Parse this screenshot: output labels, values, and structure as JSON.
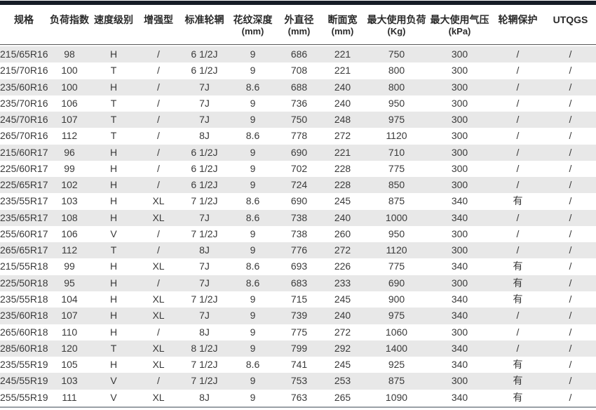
{
  "colors": {
    "stripe_row": "#e8e8e8",
    "top_bar": "#161d27",
    "header_divider": "#575757",
    "bottom_rule": "#9aa0a6",
    "text": "#3a3a3a"
  },
  "table": {
    "columns": [
      {
        "label": "规格",
        "unit": ""
      },
      {
        "label": "负荷指数",
        "unit": ""
      },
      {
        "label": "速度级别",
        "unit": ""
      },
      {
        "label": "增强型",
        "unit": ""
      },
      {
        "label": "标准轮辋",
        "unit": ""
      },
      {
        "label": "花纹深度",
        "unit": "(mm)"
      },
      {
        "label": "外直径",
        "unit": "(mm)"
      },
      {
        "label": "断面宽",
        "unit": "(mm)"
      },
      {
        "label": "最大使用负荷",
        "unit": "(Kg)"
      },
      {
        "label": "最大使用气压",
        "unit": "(kPa)"
      },
      {
        "label": "轮辋保护",
        "unit": ""
      },
      {
        "label": "UTQGS",
        "unit": ""
      }
    ],
    "rows": [
      [
        "215/65R16",
        "98",
        "H",
        "/",
        "6 1/2J",
        "9",
        "686",
        "221",
        "750",
        "300",
        "/",
        "/"
      ],
      [
        "215/70R16",
        "100",
        "T",
        "/",
        "6 1/2J",
        "9",
        "708",
        "221",
        "800",
        "300",
        "/",
        "/"
      ],
      [
        "235/60R16",
        "100",
        "H",
        "/",
        "7J",
        "8.6",
        "688",
        "240",
        "800",
        "300",
        "/",
        "/"
      ],
      [
        "235/70R16",
        "106",
        "T",
        "/",
        "7J",
        "9",
        "736",
        "240",
        "950",
        "300",
        "/",
        "/"
      ],
      [
        "245/70R16",
        "107",
        "T",
        "/",
        "7J",
        "9",
        "750",
        "248",
        "975",
        "300",
        "/",
        "/"
      ],
      [
        "265/70R16",
        "112",
        "T",
        "/",
        "8J",
        "8.6",
        "778",
        "272",
        "1120",
        "300",
        "/",
        "/"
      ],
      [
        "215/60R17",
        "96",
        "H",
        "/",
        "6 1/2J",
        "9",
        "690",
        "221",
        "710",
        "300",
        "/",
        "/"
      ],
      [
        "225/60R17",
        "99",
        "H",
        "/",
        "6 1/2J",
        "9",
        "702",
        "228",
        "775",
        "300",
        "/",
        "/"
      ],
      [
        "225/65R17",
        "102",
        "H",
        "/",
        "6 1/2J",
        "9",
        "724",
        "228",
        "850",
        "300",
        "/",
        "/"
      ],
      [
        "235/55R17",
        "103",
        "H",
        "XL",
        "7 1/2J",
        "8.6",
        "690",
        "245",
        "875",
        "340",
        "有",
        "/"
      ],
      [
        "235/65R17",
        "108",
        "H",
        "XL",
        "7J",
        "8.6",
        "738",
        "240",
        "1000",
        "340",
        "/",
        "/"
      ],
      [
        "255/60R17",
        "106",
        "V",
        "/",
        "7 1/2J",
        "9",
        "738",
        "260",
        "950",
        "300",
        "/",
        "/"
      ],
      [
        "265/65R17",
        "112",
        "T",
        "/",
        "8J",
        "9",
        "776",
        "272",
        "1120",
        "300",
        "/",
        "/"
      ],
      [
        "215/55R18",
        "99",
        "H",
        "XL",
        "7J",
        "8.6",
        "693",
        "226",
        "775",
        "340",
        "有",
        "/"
      ],
      [
        "225/50R18",
        "95",
        "H",
        "/",
        "7J",
        "8.6",
        "683",
        "233",
        "690",
        "300",
        "有",
        "/"
      ],
      [
        "235/55R18",
        "104",
        "H",
        "XL",
        "7 1/2J",
        "9",
        "715",
        "245",
        "900",
        "340",
        "有",
        "/"
      ],
      [
        "235/60R18",
        "107",
        "H",
        "XL",
        "7J",
        "9",
        "739",
        "240",
        "975",
        "340",
        "/",
        "/"
      ],
      [
        "265/60R18",
        "110",
        "H",
        "/",
        "8J",
        "9",
        "775",
        "272",
        "1060",
        "300",
        "/",
        "/"
      ],
      [
        "285/60R18",
        "120",
        "T",
        "XL",
        "8 1/2J",
        "9",
        "799",
        "292",
        "1400",
        "340",
        "/",
        "/"
      ],
      [
        "235/55R19",
        "105",
        "H",
        "XL",
        "7 1/2J",
        "8.6",
        "741",
        "245",
        "925",
        "340",
        "有",
        "/"
      ],
      [
        "245/55R19",
        "103",
        "V",
        "/",
        "7 1/2J",
        "9",
        "753",
        "253",
        "875",
        "300",
        "有",
        "/"
      ],
      [
        "255/55R19",
        "111",
        "V",
        "XL",
        "8J",
        "9",
        "763",
        "265",
        "1090",
        "340",
        "有",
        "/"
      ]
    ]
  }
}
